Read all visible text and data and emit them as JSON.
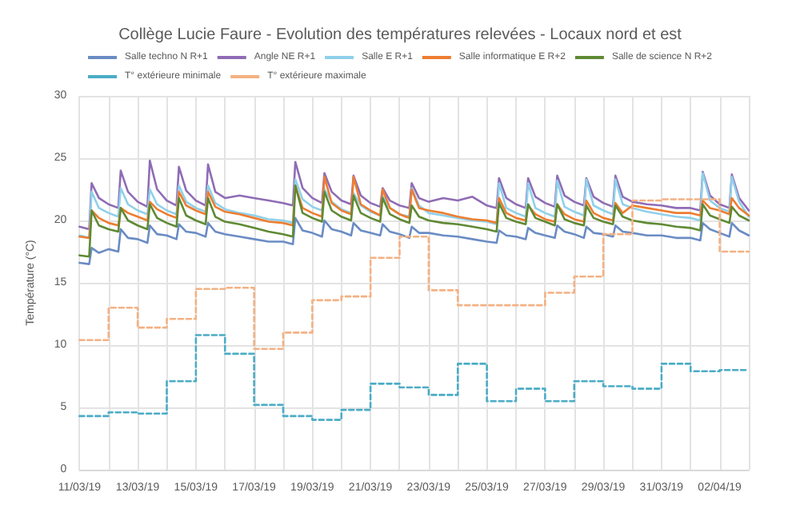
{
  "chart_data": {
    "type": "line",
    "title": "Collège Lucie Faure - Evolution des températures relevées - Locaux nord et est",
    "ylabel": "Température (°C)",
    "legend": "top",
    "grid": true,
    "marker": "none",
    "line_style": "solid",
    "xlim": [
      "--03-11",
      "--04-03"
    ],
    "xticks": [
      {
        "value": "--03-11",
        "label": "11/03/19"
      },
      {
        "value": "--03-12",
        "label": null
      },
      {
        "value": "--03-13",
        "label": "13/03/19"
      },
      {
        "value": "--03-14",
        "label": null
      },
      {
        "value": "--03-15",
        "label": "15/03/19"
      },
      {
        "value": "--03-16",
        "label": null
      },
      {
        "value": "--03-17",
        "label": "17/03/19"
      },
      {
        "value": "--03-18",
        "label": null
      },
      {
        "value": "--03-19",
        "label": "19/03/19"
      },
      {
        "value": "--03-20",
        "label": null
      },
      {
        "value": "--03-21",
        "label": "21/03/19"
      },
      {
        "value": "--03-22",
        "label": null
      },
      {
        "value": "--03-23",
        "label": "23/03/19"
      },
      {
        "value": "--03-24",
        "label": null
      },
      {
        "value": "--03-25",
        "label": "25/03/19"
      },
      {
        "value": "--03-26",
        "label": null
      },
      {
        "value": "--03-27",
        "label": "27/03/19"
      },
      {
        "value": "--03-28",
        "label": null
      },
      {
        "value": "--03-29",
        "label": "29/03/19"
      },
      {
        "value": "--03-30",
        "label": null
      },
      {
        "value": "--03-31",
        "label": "31/03/19"
      },
      {
        "value": "--04-01",
        "label": null
      },
      {
        "value": "--04-02",
        "label": "02/04/19"
      },
      {
        "value": "--04-03",
        "label": null
      }
    ],
    "ylim": [
      0,
      30
    ],
    "yticks": [
      0,
      5,
      10,
      15,
      20,
      25,
      30
    ],
    "x": [
      "--03-11T00:00",
      "--03-11T08:00",
      "--03-11T10:00",
      "--03-11T16:00",
      "--03-12T00:00",
      "--03-12T08:00",
      "--03-12T10:00",
      "--03-12T16:00",
      "--03-13T00:00",
      "--03-13T08:00",
      "--03-13T10:00",
      "--03-13T16:00",
      "--03-14T00:00",
      "--03-14T08:00",
      "--03-14T10:00",
      "--03-14T16:00",
      "--03-15T00:00",
      "--03-15T08:00",
      "--03-15T10:00",
      "--03-15T16:00",
      "--03-16T00:00",
      "--03-16T12:00",
      "--03-17T00:00",
      "--03-17T12:00",
      "--03-18T00:00",
      "--03-18T08:00",
      "--03-18T10:00",
      "--03-18T16:00",
      "--03-19T00:00",
      "--03-19T08:00",
      "--03-19T10:00",
      "--03-19T16:00",
      "--03-20T00:00",
      "--03-20T08:00",
      "--03-20T10:00",
      "--03-20T16:00",
      "--03-21T00:00",
      "--03-21T08:00",
      "--03-21T10:00",
      "--03-21T16:00",
      "--03-22T00:00",
      "--03-22T08:00",
      "--03-22T10:00",
      "--03-22T16:00",
      "--03-23T00:00",
      "--03-23T12:00",
      "--03-24T00:00",
      "--03-24T12:00",
      "--03-25T00:00",
      "--03-25T08:00",
      "--03-25T10:00",
      "--03-25T16:00",
      "--03-26T00:00",
      "--03-26T08:00",
      "--03-26T10:00",
      "--03-26T16:00",
      "--03-27T00:00",
      "--03-27T08:00",
      "--03-27T10:00",
      "--03-27T16:00",
      "--03-28T00:00",
      "--03-28T08:00",
      "--03-28T10:00",
      "--03-28T16:00",
      "--03-29T00:00",
      "--03-29T08:00",
      "--03-29T10:00",
      "--03-29T16:00",
      "--03-30T00:00",
      "--03-30T12:00",
      "--03-31T00:00",
      "--03-31T12:00",
      "--04-01T00:00",
      "--04-01T08:00",
      "--04-01T10:00",
      "--04-01T16:00",
      "--04-02T00:00",
      "--04-02T08:00",
      "--04-02T10:00",
      "--04-02T16:00",
      "--04-03T00:00"
    ],
    "series": [
      {
        "name": "Salle techno N R+1",
        "color": "#6a8cc4",
        "values": [
          16.6,
          16.5,
          17.8,
          17.4,
          17.7,
          17.5,
          19.3,
          18.6,
          18.5,
          18.2,
          19.6,
          18.9,
          18.8,
          18.5,
          19.7,
          19.1,
          19.0,
          18.7,
          19.8,
          19.1,
          18.9,
          18.7,
          18.5,
          18.3,
          18.3,
          18.1,
          20.2,
          19.2,
          19.0,
          18.7,
          20.0,
          19.3,
          19.1,
          18.8,
          19.8,
          19.2,
          19.0,
          18.8,
          19.7,
          19.1,
          18.9,
          18.6,
          19.5,
          19.0,
          19.0,
          18.8,
          18.7,
          18.5,
          18.3,
          18.2,
          19.2,
          18.8,
          18.7,
          18.5,
          19.4,
          19.0,
          18.8,
          18.6,
          19.6,
          19.1,
          18.9,
          18.6,
          19.5,
          19.0,
          18.9,
          18.7,
          19.6,
          19.1,
          19.0,
          18.8,
          18.8,
          18.6,
          18.6,
          18.4,
          19.8,
          19.3,
          19.0,
          18.7,
          19.8,
          19.2,
          18.8
        ]
      },
      {
        "name": "Angle NE R+1",
        "color": "#8f6cb5",
        "values": [
          19.5,
          19.3,
          23.0,
          21.8,
          21.3,
          21.0,
          24.0,
          22.3,
          21.5,
          21.1,
          24.8,
          22.5,
          21.6,
          21.2,
          24.3,
          22.4,
          21.6,
          21.2,
          24.5,
          22.3,
          21.8,
          22.0,
          21.8,
          21.6,
          21.4,
          21.2,
          24.7,
          22.6,
          21.8,
          21.4,
          23.8,
          22.3,
          21.6,
          21.3,
          23.6,
          22.0,
          21.4,
          21.1,
          22.6,
          21.6,
          21.2,
          21.0,
          23.0,
          21.8,
          21.5,
          21.8,
          21.6,
          21.9,
          21.2,
          21.0,
          23.4,
          21.8,
          21.3,
          21.0,
          23.4,
          21.9,
          21.4,
          21.1,
          23.6,
          22.0,
          21.5,
          21.2,
          23.4,
          21.9,
          21.4,
          21.1,
          23.6,
          21.9,
          21.5,
          21.3,
          21.2,
          21.0,
          21.0,
          20.8,
          23.9,
          22.0,
          21.3,
          21.0,
          23.7,
          21.8,
          20.8
        ]
      },
      {
        "name": "Salle E R+1",
        "color": "#8fd0ea",
        "values": [
          18.8,
          18.6,
          22.3,
          21.0,
          20.6,
          20.3,
          22.6,
          21.3,
          20.8,
          20.5,
          22.5,
          21.3,
          20.8,
          20.5,
          22.8,
          21.5,
          21.0,
          20.7,
          22.8,
          21.4,
          20.9,
          20.6,
          20.4,
          20.1,
          20.0,
          19.8,
          23.3,
          21.7,
          21.1,
          20.8,
          22.5,
          21.5,
          20.9,
          20.6,
          22.2,
          21.2,
          20.7,
          20.4,
          22.0,
          21.0,
          20.5,
          20.3,
          22.6,
          21.2,
          20.6,
          20.4,
          20.2,
          20.0,
          19.9,
          19.7,
          23.0,
          21.0,
          20.6,
          20.3,
          23.0,
          21.0,
          20.6,
          20.3,
          23.2,
          21.1,
          20.7,
          20.4,
          23.3,
          21.2,
          20.8,
          20.5,
          23.3,
          21.3,
          21.0,
          20.7,
          20.5,
          20.3,
          20.2,
          20.0,
          23.8,
          21.6,
          21.0,
          20.7,
          23.5,
          21.5,
          20.3
        ]
      },
      {
        "name": "Salle informatique E R+2",
        "color": "#ed7d31",
        "values": [
          18.7,
          18.6,
          20.8,
          20.2,
          19.8,
          19.6,
          21.0,
          20.6,
          20.3,
          20.0,
          21.5,
          20.9,
          20.5,
          20.2,
          22.3,
          21.2,
          20.8,
          20.5,
          22.3,
          21.1,
          20.7,
          20.5,
          20.2,
          19.9,
          19.8,
          19.6,
          22.8,
          21.0,
          20.6,
          20.3,
          23.5,
          21.4,
          20.8,
          20.5,
          23.5,
          21.3,
          20.8,
          20.4,
          22.5,
          21.0,
          20.5,
          20.2,
          22.5,
          21.0,
          20.8,
          20.6,
          20.3,
          20.1,
          20.0,
          19.8,
          21.8,
          20.6,
          20.2,
          20.0,
          21.2,
          20.5,
          20.1,
          19.9,
          21.3,
          20.5,
          20.1,
          19.9,
          21.6,
          20.6,
          20.2,
          20.0,
          21.4,
          20.6,
          21.2,
          21.0,
          20.8,
          20.6,
          20.6,
          20.4,
          21.6,
          21.0,
          20.8,
          20.5,
          21.8,
          21.0,
          20.4
        ]
      },
      {
        "name": "Salle de science N R+2",
        "color": "#5f8a34",
        "values": [
          17.2,
          17.1,
          20.8,
          19.6,
          19.3,
          19.1,
          21.0,
          20.0,
          19.6,
          19.3,
          21.3,
          20.2,
          19.8,
          19.5,
          21.8,
          20.4,
          20.0,
          19.7,
          21.8,
          20.3,
          19.9,
          19.7,
          19.4,
          19.1,
          18.9,
          18.7,
          22.8,
          20.6,
          20.2,
          19.9,
          22.3,
          20.8,
          20.3,
          20.0,
          22.0,
          20.6,
          20.2,
          19.9,
          21.8,
          20.5,
          20.1,
          19.8,
          21.2,
          20.3,
          20.0,
          19.8,
          19.7,
          19.5,
          19.3,
          19.1,
          21.4,
          20.2,
          19.9,
          19.7,
          21.3,
          20.2,
          19.9,
          19.6,
          21.3,
          20.1,
          19.8,
          19.6,
          21.2,
          20.2,
          19.9,
          19.7,
          21.2,
          20.3,
          20.0,
          19.8,
          19.7,
          19.5,
          19.4,
          19.2,
          21.3,
          20.4,
          20.1,
          19.8,
          21.1,
          20.4,
          20.0
        ]
      },
      {
        "name": "T° extérieure minimale",
        "type": "step",
        "line_style": "dashed",
        "color": "#4bacc6",
        "x": [
          "--03-11",
          "--03-12",
          "--03-13",
          "--03-14",
          "--03-15",
          "--03-16",
          "--03-17",
          "--03-18",
          "--03-19",
          "--03-20",
          "--03-21",
          "--03-22",
          "--03-23",
          "--03-24",
          "--03-25",
          "--03-26",
          "--03-27",
          "--03-28",
          "--03-29",
          "--03-30",
          "--03-31",
          "--04-01",
          "--04-02",
          "--04-03"
        ],
        "values": [
          4.3,
          4.6,
          4.5,
          7.1,
          10.8,
          9.3,
          5.2,
          4.3,
          4.0,
          4.8,
          6.9,
          6.6,
          6.0,
          8.5,
          5.5,
          6.5,
          5.5,
          7.1,
          6.7,
          6.5,
          8.5,
          7.9,
          8.0,
          8.0
        ]
      },
      {
        "name": "T° extérieure maximale",
        "type": "step",
        "line_style": "dashed",
        "color": "#f4b183",
        "x": [
          "--03-11",
          "--03-12",
          "--03-13",
          "--03-14",
          "--03-15",
          "--03-16",
          "--03-17",
          "--03-18",
          "--03-19",
          "--03-20",
          "--03-21",
          "--03-22",
          "--03-23",
          "--03-24",
          "--03-25",
          "--03-26",
          "--03-27",
          "--03-28",
          "--03-29",
          "--03-30",
          "--03-31",
          "--04-01",
          "--04-02",
          "--04-03"
        ],
        "values": [
          10.4,
          13.0,
          11.4,
          12.1,
          14.5,
          14.6,
          9.7,
          11.0,
          13.6,
          13.9,
          17.0,
          18.7,
          14.4,
          13.2,
          13.2,
          13.2,
          14.2,
          15.5,
          18.9,
          21.6,
          21.7,
          21.7,
          17.5,
          17.5
        ]
      }
    ]
  }
}
